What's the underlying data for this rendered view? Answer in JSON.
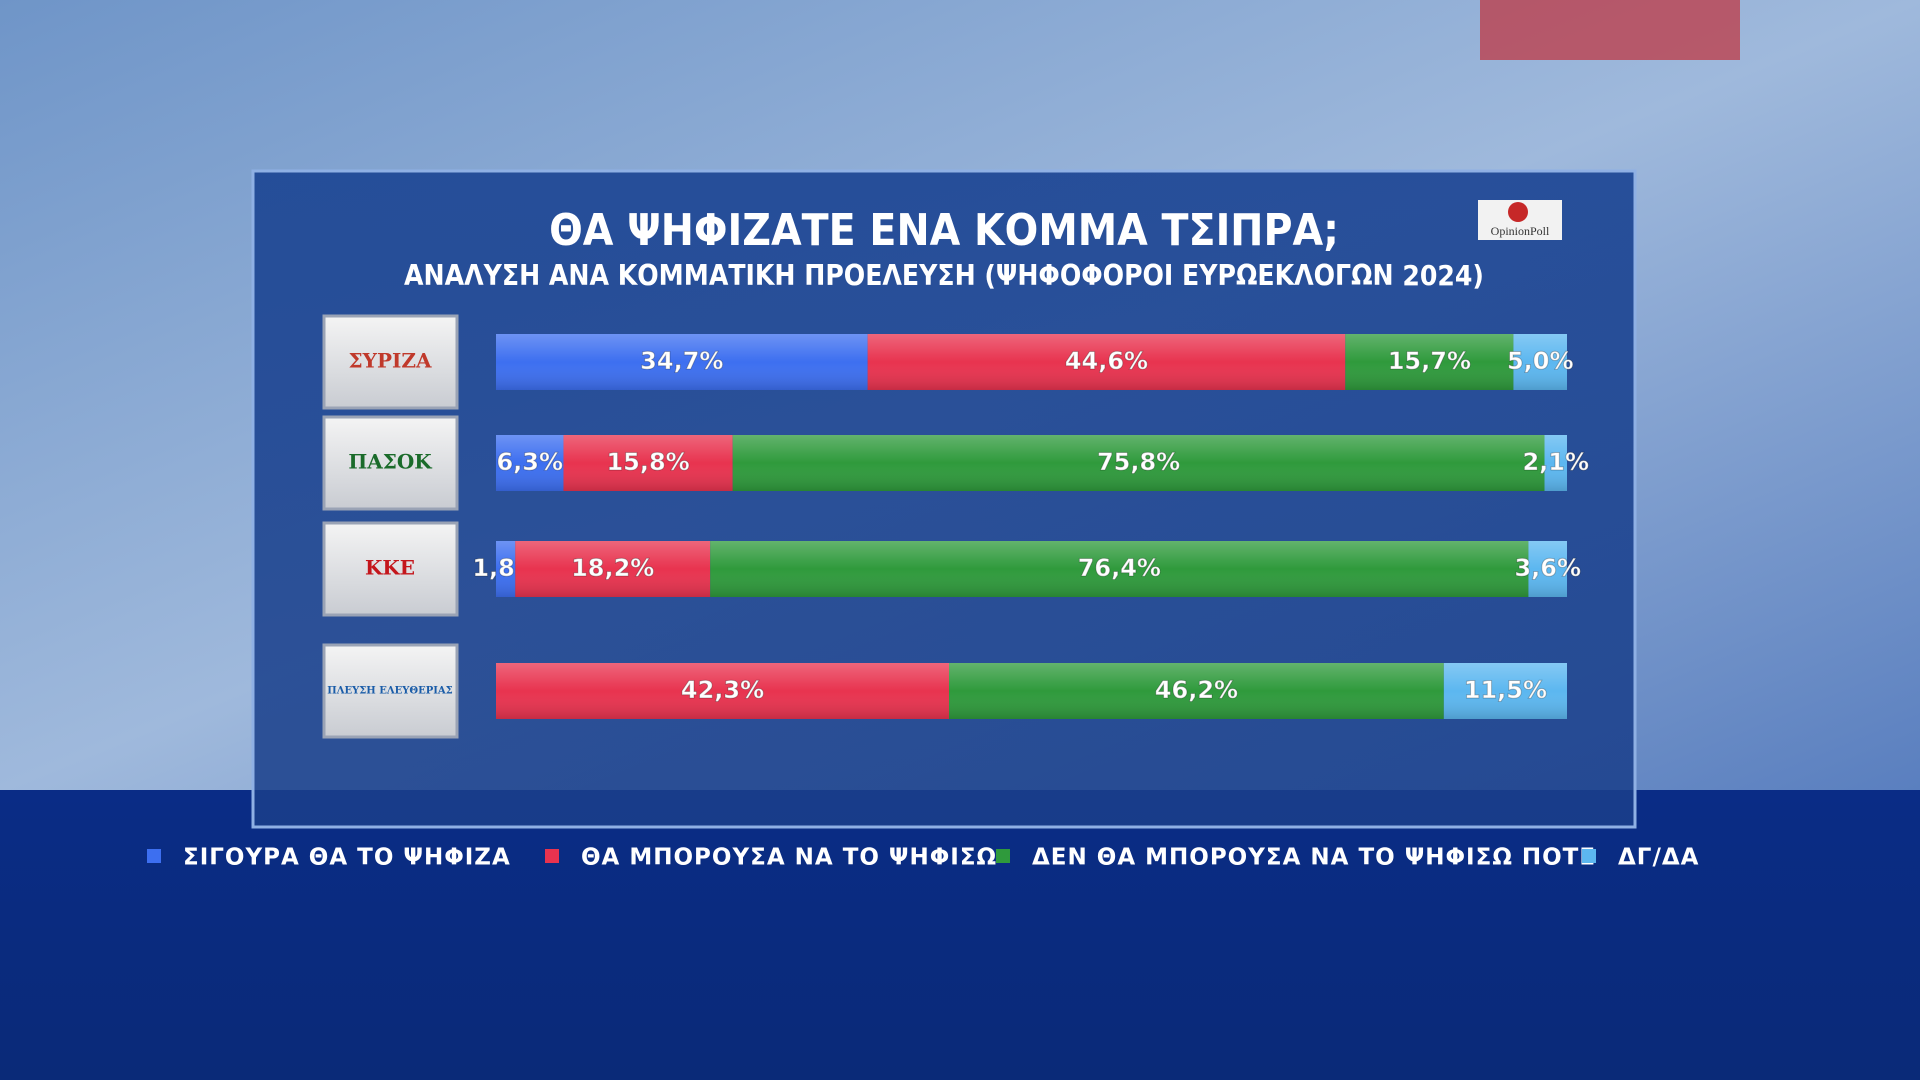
{
  "chart_data": {
    "type": "stacked-barh",
    "title": "ΘΑ ΨΗΦΙΖΑΤΕ ΕΝΑ ΚΟΜΜΑ ΤΣΙΠΡΑ;",
    "subtitle": "ΑΝΑΛΥΣΗ ΑΝΑ ΚΟΜΜΑΤΙΚΗ ΠΡΟΕΛΕΥΣΗ (ΨΗΦΟΦΟΡΟΙ ΕΥΡΩΕΚΛΟΓΩΝ 2024)",
    "source": "OpinionPoll",
    "categories": [
      "ΣΥΡΙΖΑ",
      "ΠΑΣΟΚ",
      "ΚΚΕ",
      "ΠΛΕΥΣΗ ΕΛΕΥΘΕΡΙΑΣ"
    ],
    "xlim": [
      0,
      100
    ],
    "legend": "bottom",
    "series": [
      {
        "name": "ΣΙΓΟΥΡΑ ΘΑ ΤΟ ΨΗΦΙΖΑ",
        "color": "#3d6ff0",
        "values": [
          34.7,
          6.3,
          1.8,
          null
        ],
        "value_labels": [
          "34,7%",
          "6,3%",
          "1,8%",
          null
        ]
      },
      {
        "name": "ΘΑ ΜΠΟΡΟΥΣΑ ΝΑ ΤΟ ΨΗΦΙΣΩ",
        "color": "#e8334f",
        "values": [
          44.6,
          15.8,
          18.2,
          42.3
        ],
        "value_labels": [
          "44,6%",
          "15,8%",
          "18,2%",
          "42,3%"
        ]
      },
      {
        "name": "ΔΕΝ ΘΑ ΜΠΟΡΟΥΣΑ ΝΑ ΤΟ ΨΗΦΙΣΩ ΠΟΤΕ",
        "color": "#2f9a3c",
        "values": [
          15.7,
          75.8,
          76.4,
          46.2
        ],
        "value_labels": [
          "15,7%",
          "75,8%",
          "76,4%",
          "46,2%"
        ]
      },
      {
        "name": "ΔΓ/ΔΑ",
        "color": "#5cb7f0",
        "values": [
          5.0,
          2.1,
          3.6,
          11.5
        ],
        "value_labels": [
          "5,0%",
          "2,1%",
          "3,6%",
          "11,5%"
        ]
      }
    ]
  }
}
